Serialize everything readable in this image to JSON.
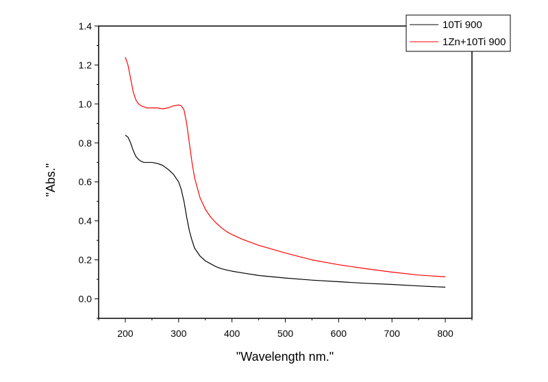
{
  "chart_data": {
    "type": "line",
    "xlabel": "\"Wavelength nm.\"",
    "ylabel": "\"Abs.\"",
    "xlim": [
      150,
      850
    ],
    "ylim": [
      -0.1,
      1.4
    ],
    "xticks": [
      200,
      300,
      400,
      500,
      600,
      700,
      800
    ],
    "yticks": [
      0.0,
      0.2,
      0.4,
      0.6,
      0.8,
      1.0,
      1.2,
      1.4
    ],
    "xtick_labels": [
      "200",
      "300",
      "400",
      "500",
      "600",
      "700",
      "800"
    ],
    "ytick_labels": [
      "0.0",
      "0.2",
      "0.4",
      "0.6",
      "0.8",
      "1.0",
      "1.2",
      "1.4"
    ],
    "grid": false,
    "legend_position": "top-right",
    "series": [
      {
        "name": "10Ti 900",
        "color": "#000000",
        "x": [
          200,
          205,
          210,
          215,
          220,
          225,
          230,
          235,
          240,
          250,
          260,
          270,
          280,
          290,
          300,
          305,
          310,
          315,
          320,
          325,
          330,
          340,
          350,
          360,
          370,
          380,
          390,
          400,
          420,
          450,
          500,
          550,
          600,
          650,
          700,
          750,
          800
        ],
        "y": [
          0.84,
          0.83,
          0.8,
          0.76,
          0.73,
          0.715,
          0.705,
          0.7,
          0.7,
          0.7,
          0.695,
          0.685,
          0.665,
          0.64,
          0.6,
          0.56,
          0.5,
          0.42,
          0.35,
          0.3,
          0.26,
          0.22,
          0.195,
          0.18,
          0.165,
          0.155,
          0.148,
          0.142,
          0.133,
          0.12,
          0.107,
          0.096,
          0.088,
          0.08,
          0.074,
          0.066,
          0.06
        ]
      },
      {
        "name": "1Zn+10Ti 900",
        "color": "#ff0000",
        "x": [
          200,
          205,
          210,
          215,
          220,
          225,
          230,
          235,
          240,
          250,
          260,
          270,
          280,
          290,
          300,
          305,
          310,
          315,
          320,
          325,
          330,
          340,
          350,
          360,
          370,
          380,
          390,
          400,
          420,
          450,
          500,
          550,
          600,
          650,
          700,
          750,
          800
        ],
        "y": [
          1.24,
          1.2,
          1.13,
          1.06,
          1.02,
          1.0,
          0.99,
          0.985,
          0.98,
          0.98,
          0.98,
          0.975,
          0.98,
          0.99,
          0.995,
          0.99,
          0.97,
          0.9,
          0.8,
          0.7,
          0.62,
          0.52,
          0.46,
          0.42,
          0.39,
          0.365,
          0.345,
          0.33,
          0.305,
          0.275,
          0.235,
          0.2,
          0.175,
          0.155,
          0.137,
          0.122,
          0.113
        ]
      }
    ]
  }
}
